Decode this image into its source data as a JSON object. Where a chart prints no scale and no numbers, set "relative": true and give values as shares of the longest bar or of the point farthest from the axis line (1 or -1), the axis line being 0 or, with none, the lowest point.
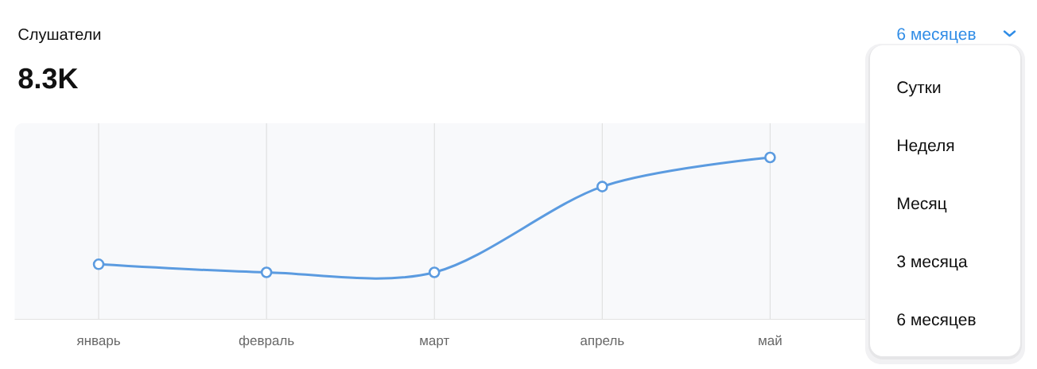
{
  "chart_data": {
    "type": "line",
    "title": "Слушатели",
    "subtitle": "8.3K",
    "annotations": [
      "6 месяцев",
      "Сутки",
      "Неделя",
      "Месяц",
      "3 месяца",
      "6 месяцев"
    ],
    "categories": [
      "январь",
      "февраль",
      "март",
      "апрель",
      "май",
      null
    ],
    "values": [
      0.34,
      0.29,
      0.29,
      0.82,
      1,
      null
    ],
    "color": "#5b9be0",
    "relative": true,
    "grid": "x",
    "marker": "circle",
    "line_style": "solid"
  }
}
